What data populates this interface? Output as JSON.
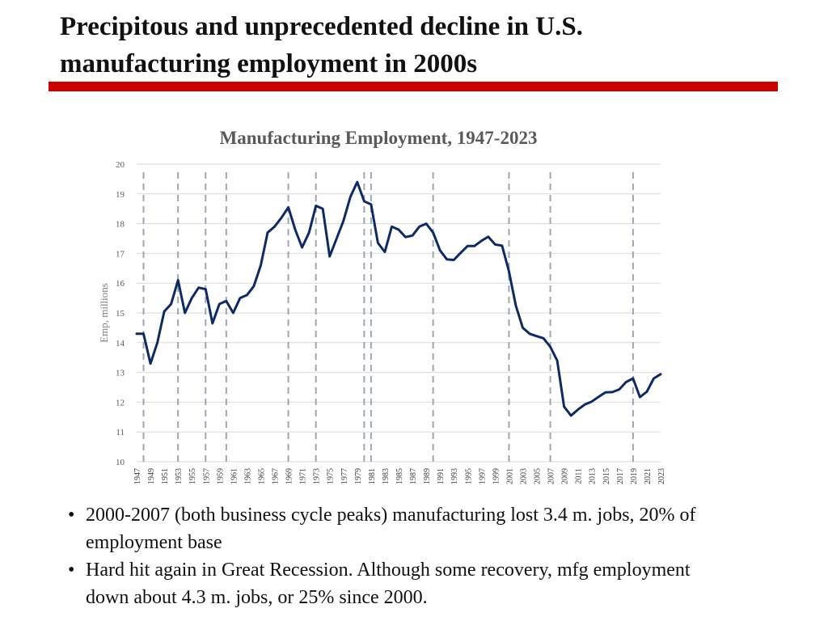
{
  "slide": {
    "title_line1": "Precipitous and unprecedented decline in U.S.",
    "title_line2": "manufacturing employment in 2000s",
    "accent_color": "#cc0000"
  },
  "bullets": [
    "2000-2007 (both business cycle peaks) manufacturing lost 3.4 m. jobs, 20% of employment base",
    "Hard hit again in Great Recession.  Although some recovery, mfg employment down about 4.3 m. jobs, or 25% since 2000."
  ],
  "chart_data": {
    "type": "line",
    "title": "Manufacturing Employment, 1947-2023",
    "xlabel": "",
    "ylabel": "Emp, millions",
    "ylim": [
      10,
      20
    ],
    "yticks": [
      10,
      11,
      12,
      13,
      14,
      15,
      16,
      17,
      18,
      19,
      20
    ],
    "xticks": [
      "1947",
      "1949",
      "1951",
      "1953",
      "1955",
      "1957",
      "1959",
      "1961",
      "1963",
      "1965",
      "1967",
      "1969",
      "1971",
      "1973",
      "1975",
      "1977",
      "1979",
      "1981",
      "1983",
      "1985",
      "1987",
      "1989",
      "1991",
      "1993",
      "1995",
      "1997",
      "1999",
      "2001",
      "2003",
      "2005",
      "2007",
      "2009",
      "2011",
      "2013",
      "2015",
      "2017",
      "2019",
      "2021",
      "2023"
    ],
    "grid": true,
    "line_color": "#0d2a66",
    "recession_marker_years": [
      1948,
      1953,
      1957,
      1960,
      1969,
      1973,
      1980,
      1981,
      1990,
      2001,
      2007,
      2019
    ],
    "series": [
      {
        "name": "Manufacturing employment",
        "x": [
          1947,
          1948,
          1949,
          1950,
          1951,
          1952,
          1953,
          1954,
          1955,
          1956,
          1957,
          1958,
          1959,
          1960,
          1961,
          1962,
          1963,
          1964,
          1965,
          1966,
          1967,
          1968,
          1969,
          1970,
          1971,
          1972,
          1973,
          1974,
          1975,
          1976,
          1977,
          1978,
          1979,
          1980,
          1981,
          1982,
          1983,
          1984,
          1985,
          1986,
          1987,
          1988,
          1989,
          1990,
          1991,
          1992,
          1993,
          1994,
          1995,
          1996,
          1997,
          1998,
          1999,
          2000,
          2001,
          2002,
          2003,
          2004,
          2005,
          2006,
          2007,
          2008,
          2009,
          2010,
          2011,
          2012,
          2013,
          2014,
          2015,
          2016,
          2017,
          2018,
          2019,
          2020,
          2021,
          2022,
          2023
        ],
        "values": [
          14.3,
          14.3,
          13.3,
          14.0,
          15.05,
          15.3,
          16.1,
          15.0,
          15.5,
          15.85,
          15.8,
          14.65,
          15.3,
          15.4,
          15.0,
          15.5,
          15.6,
          15.9,
          16.6,
          17.7,
          17.9,
          18.2,
          18.55,
          17.8,
          17.2,
          17.7,
          18.6,
          18.5,
          16.9,
          17.5,
          18.1,
          18.9,
          19.4,
          18.75,
          18.65,
          17.35,
          17.05,
          17.9,
          17.8,
          17.55,
          17.6,
          17.9,
          18.0,
          17.7,
          17.1,
          16.8,
          16.78,
          17.02,
          17.25,
          17.25,
          17.42,
          17.56,
          17.3,
          17.26,
          16.4,
          15.25,
          14.5,
          14.3,
          14.22,
          14.15,
          13.86,
          13.4,
          11.85,
          11.55,
          11.75,
          11.92,
          12.02,
          12.18,
          12.33,
          12.34,
          12.43,
          12.68,
          12.8,
          12.17,
          12.35,
          12.8,
          12.94
        ]
      }
    ]
  }
}
